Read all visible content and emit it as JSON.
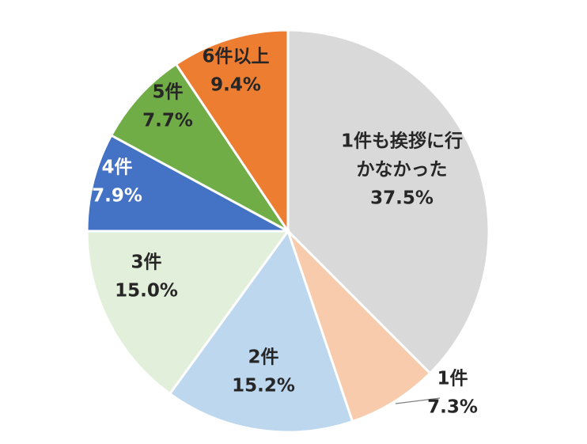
{
  "chart_data": {
    "type": "pie",
    "title": "",
    "slices": [
      {
        "label": "1件も挨拶に行かなかった",
        "label_lines": [
          "1件も挨拶に行",
          "かなかった"
        ],
        "value": 37.5,
        "value_label": "37.5%",
        "color": "#D9D9D9",
        "text_color": "#262626"
      },
      {
        "label": "1件",
        "label_lines": [
          "1件"
        ],
        "value": 7.3,
        "value_label": "7.3%",
        "color": "#F8CBAD",
        "text_color": "#262626"
      },
      {
        "label": "2件",
        "label_lines": [
          "2件"
        ],
        "value": 15.2,
        "value_label": "15.2%",
        "color": "#BDD7EE",
        "text_color": "#262626"
      },
      {
        "label": "3件",
        "label_lines": [
          "3件"
        ],
        "value": 15.0,
        "value_label": "15.0%",
        "color": "#E2EFDA",
        "text_color": "#262626"
      },
      {
        "label": "4件",
        "label_lines": [
          "4件"
        ],
        "value": 7.9,
        "value_label": "7.9%",
        "color": "#4472C4",
        "text_color": "#FFFFFF"
      },
      {
        "label": "5件",
        "label_lines": [
          "5件"
        ],
        "value": 7.7,
        "value_label": "7.7%",
        "color": "#70AD47",
        "text_color": "#262626"
      },
      {
        "label": "6件以上",
        "label_lines": [
          "6件以上"
        ],
        "value": 9.4,
        "value_label": "9.4%",
        "color": "#ED7D31",
        "text_color": "#262626"
      }
    ],
    "start_angle": "12 o'clock",
    "direction": "clockwise"
  }
}
